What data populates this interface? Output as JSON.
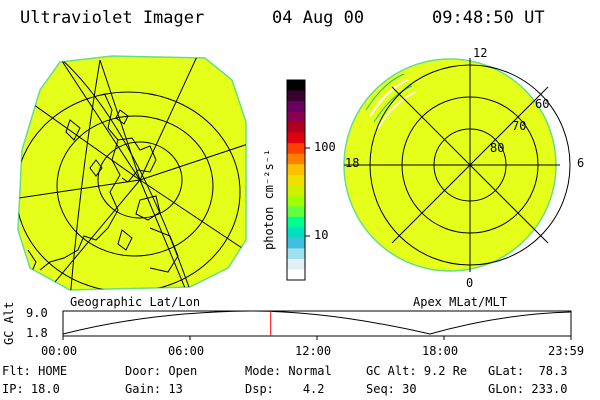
{
  "header": {
    "instrument": "Ultraviolet Imager",
    "date": "04 Aug 00",
    "time": "09:48:50 UT"
  },
  "colorbar": {
    "unit_label": "photon cm⁻²s⁻¹",
    "ticks": [
      {
        "value": 100,
        "label": "100"
      },
      {
        "value": 10,
        "label": "10"
      }
    ],
    "colors": [
      "#000000",
      "#3a0030",
      "#6a0060",
      "#8a0050",
      "#b00020",
      "#e00010",
      "#ff4000",
      "#ff8000",
      "#ffc000",
      "#f0e000",
      "#d0f000",
      "#a0ff00",
      "#60ff40",
      "#00ff90",
      "#00e0c0",
      "#40c0e0",
      "#a0e0f0",
      "#e0f0f8",
      "#ffffff"
    ]
  },
  "left_map": {
    "caption": "Geographic Lat/Lon",
    "fill_color": "#e6ff1a",
    "outline_color": "#66dd88"
  },
  "right_map": {
    "caption": "Apex MLat/MLT",
    "mlt_labels": {
      "top": "12",
      "left": "18",
      "right": "6",
      "bottom": "0"
    },
    "lat_labels": [
      "60",
      "70",
      "80"
    ]
  },
  "altitude_plot": {
    "axis_label": "GC Alt",
    "y_ticks": [
      "9.0",
      "1.8"
    ],
    "x_ticks": [
      "00:00",
      "06:00",
      "12:00",
      "18:00",
      "23:59"
    ],
    "current_time_fraction": 0.4089,
    "marker_color": "#ff0000"
  },
  "info": {
    "flt": {
      "label": "Flt:",
      "value": "HOME"
    },
    "ip": {
      "label": "IP:",
      "value": "18.0"
    },
    "door": {
      "label": "Door:",
      "value": "Open"
    },
    "gain": {
      "label": "Gain:",
      "value": "13"
    },
    "mode": {
      "label": "Mode:",
      "value": "Normal"
    },
    "dsp": {
      "label": "Dsp:",
      "value": "4.2"
    },
    "gcalt": {
      "label": "GC Alt:",
      "value": "9.2 Re"
    },
    "seq": {
      "label": "Seq:",
      "value": "30"
    },
    "glat": {
      "label": "GLat:",
      "value": "78.3"
    },
    "glon": {
      "label": "GLon:",
      "value": "233.0"
    }
  }
}
